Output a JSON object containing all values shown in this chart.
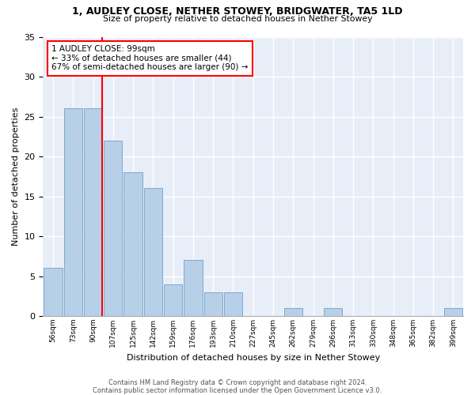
{
  "title": "1, AUDLEY CLOSE, NETHER STOWEY, BRIDGWATER, TA5 1LD",
  "subtitle": "Size of property relative to detached houses in Nether Stowey",
  "xlabel": "Distribution of detached houses by size in Nether Stowey",
  "ylabel": "Number of detached properties",
  "categories": [
    "56sqm",
    "73sqm",
    "90sqm",
    "107sqm",
    "125sqm",
    "142sqm",
    "159sqm",
    "176sqm",
    "193sqm",
    "210sqm",
    "227sqm",
    "245sqm",
    "262sqm",
    "279sqm",
    "296sqm",
    "313sqm",
    "330sqm",
    "348sqm",
    "365sqm",
    "382sqm",
    "399sqm"
  ],
  "values": [
    6,
    26,
    26,
    22,
    18,
    16,
    4,
    7,
    3,
    3,
    0,
    0,
    1,
    0,
    1,
    0,
    0,
    0,
    0,
    0,
    1
  ],
  "bar_color": "#b8cfe8",
  "bar_edge_color": "#7aaad0",
  "background_color": "#e8eef8",
  "ylim": [
    0,
    35
  ],
  "yticks": [
    0,
    5,
    10,
    15,
    20,
    25,
    30,
    35
  ],
  "vline_after_bin": 2,
  "annotation_line1": "1 AUDLEY CLOSE: 99sqm",
  "annotation_line2": "← 33% of detached houses are smaller (44)",
  "annotation_line3": "67% of semi-detached houses are larger (90) →",
  "footnote1": "Contains HM Land Registry data © Crown copyright and database right 2024.",
  "footnote2": "Contains public sector information licensed under the Open Government Licence v3.0."
}
